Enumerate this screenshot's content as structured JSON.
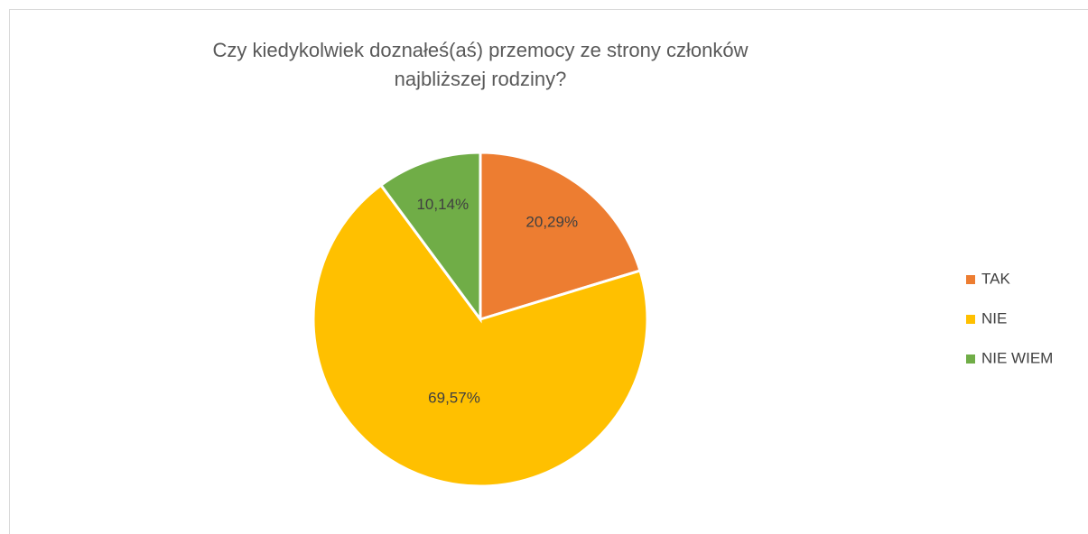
{
  "chart_data": {
    "type": "pie",
    "title": "Czy kiedykolwiek doznałeś(aś) przemocy ze strony członków najbliższej rodziny?",
    "categories": [
      "TAK",
      "NIE",
      "NIE WIEM"
    ],
    "values": [
      20.29,
      69.57,
      10.14
    ],
    "value_labels": [
      "20,29%",
      "69,57%",
      "10,14%"
    ],
    "colors": [
      "#ED7D31",
      "#FFC000",
      "#70AD47"
    ],
    "legend": "right"
  }
}
